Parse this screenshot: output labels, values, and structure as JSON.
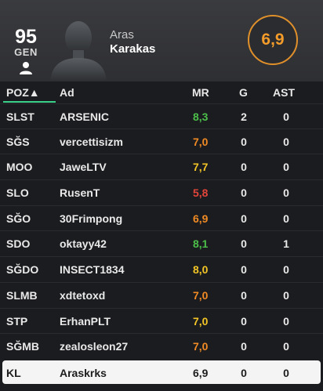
{
  "player": {
    "overall": "95",
    "overall_label": "GEN",
    "first_name": "Aras",
    "last_name": "Karakas",
    "match_rating": "6,9",
    "rating_color": "#f39c2a"
  },
  "table": {
    "headers": {
      "pos": "POZ▲",
      "name": "Ad",
      "mr": "MR",
      "g": "G",
      "ast": "AST"
    },
    "rows": [
      {
        "pos": "SLST",
        "name": "ARSENIC",
        "mr": "8,3",
        "mr_color": "#4cbf4a",
        "g": "2",
        "ast": "0"
      },
      {
        "pos": "SĞS",
        "name": "vercettisizm",
        "mr": "7,0",
        "mr_color": "#f08a24",
        "g": "0",
        "ast": "0"
      },
      {
        "pos": "MOO",
        "name": "JaweLTV",
        "mr": "7,7",
        "mr_color": "#f3c526",
        "g": "0",
        "ast": "0"
      },
      {
        "pos": "SLO",
        "name": "RusenT",
        "mr": "5,8",
        "mr_color": "#e2453a",
        "g": "0",
        "ast": "0"
      },
      {
        "pos": "SĞO",
        "name": "30Frimpong",
        "mr": "6,9",
        "mr_color": "#f08a24",
        "g": "0",
        "ast": "0"
      },
      {
        "pos": "SDO",
        "name": "oktayy42",
        "mr": "8,1",
        "mr_color": "#4cbf4a",
        "g": "0",
        "ast": "1"
      },
      {
        "pos": "SĞDO",
        "name": "INSECT1834",
        "mr": "8,0",
        "mr_color": "#f3c526",
        "g": "0",
        "ast": "0"
      },
      {
        "pos": "SLMB",
        "name": "xdtetoxd",
        "mr": "7,0",
        "mr_color": "#f08a24",
        "g": "0",
        "ast": "0"
      },
      {
        "pos": "STP",
        "name": "ErhanPLT",
        "mr": "7,0",
        "mr_color": "#f3c526",
        "g": "0",
        "ast": "0"
      },
      {
        "pos": "SĞMB",
        "name": "zealosleon27",
        "mr": "7,0",
        "mr_color": "#f08a24",
        "g": "0",
        "ast": "0"
      },
      {
        "pos": "KL",
        "name": "Araskrks",
        "mr": "6,9",
        "mr_color": "#1c1c1c",
        "g": "0",
        "ast": "0",
        "selected": true
      }
    ]
  },
  "icons": {
    "person": "person-icon",
    "portrait": "player-silhouette-icon"
  }
}
